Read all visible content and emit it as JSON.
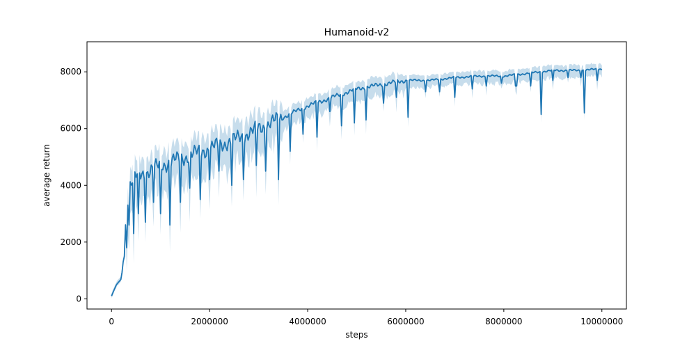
{
  "chart_data": {
    "type": "line",
    "title": "Humanoid-v2",
    "xlabel": "steps",
    "ylabel": "average return",
    "xlim": [
      -500000,
      10500000
    ],
    "ylim": [
      -360,
      9060
    ],
    "x_ticks": [
      {
        "value": 0,
        "label": "0"
      },
      {
        "value": 2000000,
        "label": "2000000"
      },
      {
        "value": 4000000,
        "label": "4000000"
      },
      {
        "value": 6000000,
        "label": "6000000"
      },
      {
        "value": 8000000,
        "label": "8000000"
      },
      {
        "value": 10000000,
        "label": "10000000"
      }
    ],
    "y_ticks": [
      {
        "value": 0,
        "label": "0"
      },
      {
        "value": 2000,
        "label": "2000"
      },
      {
        "value": 4000,
        "label": "4000"
      },
      {
        "value": 6000,
        "label": "6000"
      },
      {
        "value": 8000,
        "label": "8000"
      }
    ],
    "grid": false,
    "colors": {
      "line": "#1f77b4",
      "band": "#1f77b4",
      "band_opacity": 0.25
    },
    "series": [
      {
        "anchors": [
          [
            0,
            100
          ],
          [
            50000,
            300
          ],
          [
            100000,
            500
          ],
          [
            150000,
            600
          ],
          [
            200000,
            700
          ],
          [
            250000,
            1500
          ],
          [
            300000,
            3000
          ],
          [
            350000,
            3900
          ],
          [
            400000,
            4100
          ],
          [
            500000,
            4300
          ],
          [
            750000,
            4500
          ],
          [
            1000000,
            4700
          ],
          [
            1500000,
            5000
          ],
          [
            2000000,
            5300
          ],
          [
            2500000,
            5600
          ],
          [
            3000000,
            6000
          ],
          [
            3500000,
            6400
          ],
          [
            4000000,
            6800
          ],
          [
            4500000,
            7100
          ],
          [
            5000000,
            7400
          ],
          [
            5500000,
            7550
          ],
          [
            6000000,
            7700
          ],
          [
            6500000,
            7700
          ],
          [
            7000000,
            7800
          ],
          [
            7500000,
            7850
          ],
          [
            8000000,
            7850
          ],
          [
            8500000,
            7950
          ],
          [
            9000000,
            8050
          ],
          [
            9500000,
            8050
          ],
          [
            10000000,
            8100
          ]
        ],
        "dips": [
          [
            250000,
            1500
          ],
          [
            300000,
            1800
          ],
          [
            350000,
            2600
          ],
          [
            450000,
            2300
          ],
          [
            550000,
            3000
          ],
          [
            700000,
            2700
          ],
          [
            850000,
            3400
          ],
          [
            1000000,
            3000
          ],
          [
            1200000,
            2600
          ],
          [
            1400000,
            3400
          ],
          [
            1600000,
            3900
          ],
          [
            1800000,
            3500
          ],
          [
            2000000,
            4200
          ],
          [
            2200000,
            4500
          ],
          [
            2450000,
            4000
          ],
          [
            2700000,
            4200
          ],
          [
            2950000,
            4700
          ],
          [
            3150000,
            4500
          ],
          [
            3400000,
            4200
          ],
          [
            3650000,
            5200
          ],
          [
            3900000,
            5800
          ],
          [
            4200000,
            5700
          ],
          [
            4450000,
            6600
          ],
          [
            4700000,
            6100
          ],
          [
            4950000,
            6200
          ],
          [
            5200000,
            6300
          ],
          [
            5550000,
            6900
          ],
          [
            5800000,
            7100
          ],
          [
            6050000,
            6400
          ],
          [
            6400000,
            7300
          ],
          [
            6700000,
            7300
          ],
          [
            7000000,
            7100
          ],
          [
            7350000,
            7400
          ],
          [
            7650000,
            7500
          ],
          [
            7950000,
            7600
          ],
          [
            8250000,
            7500
          ],
          [
            8550000,
            7500
          ],
          [
            8760000,
            6500
          ],
          [
            9000000,
            7700
          ],
          [
            9300000,
            7800
          ],
          [
            9560000,
            7800
          ],
          [
            9650000,
            6550
          ],
          [
            9900000,
            7700
          ]
        ]
      }
    ]
  }
}
